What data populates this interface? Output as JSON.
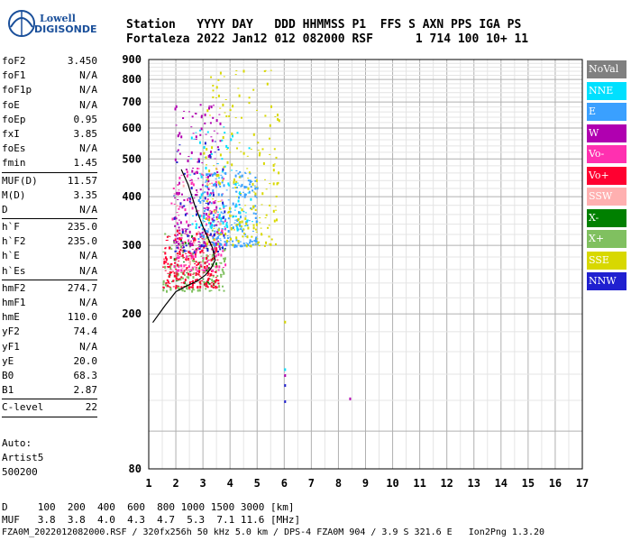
{
  "logo": {
    "line1": "Lowell",
    "line2": "DIGISONDE"
  },
  "header": {
    "row1": "Station   YYYY DAY   DDD HHMMSS P1  FFS S AXN PPS IGA PS",
    "row2": "Fortaleza 2022 Jan12 012 082000 RSF      1 714 100 10+ 11"
  },
  "params": [
    {
      "group": [
        {
          "label": "foF2",
          "value": "3.450"
        },
        {
          "label": "foF1",
          "value": "N/A"
        },
        {
          "label": "foF1p",
          "value": "N/A"
        },
        {
          "label": "foE",
          "value": "N/A"
        },
        {
          "label": "foEp",
          "value": "0.95"
        },
        {
          "label": "fxI",
          "value": "3.85"
        },
        {
          "label": "foEs",
          "value": "N/A"
        },
        {
          "label": "fmin",
          "value": "1.45"
        }
      ]
    },
    {
      "group": [
        {
          "label": "MUF(D)",
          "value": "11.57"
        },
        {
          "label": "M(D)",
          "value": "3.35"
        },
        {
          "label": "D",
          "value": "N/A"
        }
      ]
    },
    {
      "group": [
        {
          "label": "h`F",
          "value": "235.0"
        },
        {
          "label": "h`F2",
          "value": "235.0"
        },
        {
          "label": "h`E",
          "value": "N/A"
        },
        {
          "label": "h`Es",
          "value": "N/A"
        }
      ]
    },
    {
      "group": [
        {
          "label": "hmF2",
          "value": "274.7"
        },
        {
          "label": "hmF1",
          "value": "N/A"
        },
        {
          "label": "hmE",
          "value": "110.0"
        },
        {
          "label": "yF2",
          "value": "74.4"
        },
        {
          "label": "yF1",
          "value": "N/A"
        },
        {
          "label": "yE",
          "value": "20.0"
        },
        {
          "label": "B0",
          "value": "68.3"
        },
        {
          "label": "B1",
          "value": "2.87"
        }
      ]
    },
    {
      "group": [
        {
          "label": "C-level",
          "value": "22"
        }
      ]
    }
  ],
  "auto": {
    "line1": "Auto:",
    "line2": "Artist5",
    "line3": "500200"
  },
  "legend": [
    {
      "label": "NoVal",
      "color": "#808080"
    },
    {
      "label": "NNE",
      "color": "#00e0ff"
    },
    {
      "label": "E",
      "color": "#3aa0ff"
    },
    {
      "label": "W",
      "color": "#b000b0"
    },
    {
      "label": "Vo-",
      "color": "#ff30b0"
    },
    {
      "label": "Vo+",
      "color": "#ff0030"
    },
    {
      "label": "SSW",
      "color": "#ffb0b0"
    },
    {
      "label": "X-",
      "color": "#008000"
    },
    {
      "label": "X+",
      "color": "#80c060"
    },
    {
      "label": "SSE",
      "color": "#d8d800"
    },
    {
      "label": "NNW",
      "color": "#2020d0"
    }
  ],
  "chart_data": {
    "type": "scatter",
    "title": "",
    "xlabel": "",
    "ylabel": "",
    "xlim": [
      1,
      17
    ],
    "ylim": [
      80,
      900
    ],
    "x_ticks": [
      "1",
      "2",
      "3",
      "4",
      "5",
      "6",
      "7",
      "8",
      "9",
      "10",
      "11",
      "12",
      "13",
      "14",
      "15",
      "16",
      "17"
    ],
    "y_ticks": [
      "80",
      "200",
      "300",
      "400",
      "500",
      "600",
      "700",
      "800",
      "900"
    ],
    "y_scale": "logarithmic",
    "grid": true,
    "legend_position": "right",
    "profile_curve": {
      "name": "",
      "points": [
        [
          1.15,
          190
        ],
        [
          1.6,
          210
        ],
        [
          2.0,
          228
        ],
        [
          2.4,
          236
        ],
        [
          2.8,
          243
        ],
        [
          3.1,
          252
        ],
        [
          3.3,
          262
        ],
        [
          3.45,
          275
        ],
        [
          3.35,
          296
        ],
        [
          3.0,
          335
        ],
        [
          2.7,
          380
        ],
        [
          2.45,
          430
        ],
        [
          2.2,
          470
        ]
      ]
    },
    "clusters": [
      {
        "series": "X+",
        "color": "#80c060",
        "xmin": 1.5,
        "xmax": 3.8,
        "hmin": 230,
        "hmax": 330,
        "count": 160
      },
      {
        "series": "X-",
        "color": "#008000",
        "xmin": 1.7,
        "xmax": 3.5,
        "hmin": 240,
        "hmax": 320,
        "count": 40
      },
      {
        "series": "Vo+",
        "color": "#ff0030",
        "xmin": 1.5,
        "xmax": 3.6,
        "hmin": 235,
        "hmax": 330,
        "count": 220
      },
      {
        "series": "Vo-",
        "color": "#ff30b0",
        "xmin": 1.8,
        "xmax": 3.8,
        "hmin": 260,
        "hmax": 480,
        "count": 160
      },
      {
        "series": "W",
        "color": "#b000b0",
        "xmin": 1.9,
        "xmax": 3.7,
        "hmin": 300,
        "hmax": 700,
        "count": 170
      },
      {
        "series": "E",
        "color": "#3aa0ff",
        "xmin": 2.8,
        "xmax": 5.0,
        "hmin": 300,
        "hmax": 470,
        "count": 220
      },
      {
        "series": "NNE",
        "color": "#00e0ff",
        "xmin": 2.5,
        "xmax": 4.8,
        "hmin": 330,
        "hmax": 620,
        "count": 90
      },
      {
        "series": "SSE",
        "color": "#d8d800",
        "xmin": 3.0,
        "xmax": 5.8,
        "hmin": 300,
        "hmax": 850,
        "count": 210
      },
      {
        "series": "NNW",
        "color": "#2020d0",
        "xmin": 1.9,
        "xmax": 3.8,
        "hmin": 290,
        "hmax": 560,
        "count": 70
      },
      {
        "series": "SSW",
        "color": "#ffb0b0",
        "xmin": 2.0,
        "xmax": 3.6,
        "hmin": 260,
        "hmax": 520,
        "count": 25
      }
    ],
    "sparse_points": [
      {
        "x": 6.0,
        "h": 192,
        "series": "SSE"
      },
      {
        "x": 6.0,
        "h": 145,
        "series": "NNE"
      },
      {
        "x": 6.0,
        "h": 140,
        "series": "W"
      },
      {
        "x": 6.0,
        "h": 132,
        "series": "NNW"
      },
      {
        "x": 6.0,
        "h": 120,
        "series": "NNW"
      },
      {
        "x": 8.4,
        "h": 122,
        "series": "W"
      }
    ]
  },
  "footer": {
    "row1": "D     100  200  400  600  800 1000 1500 3000 [km]",
    "row2": "MUF   3.8  3.8  4.0  4.3  4.7  5.3  7.1 11.6 [MHz]",
    "row3": "FZA0M_2022012082000.RSF / 320fx256h 50 kHz 5.0 km / DPS-4 FZA0M 904 / 3.9 S 321.6 E   Ion2Png 1.3.20"
  }
}
